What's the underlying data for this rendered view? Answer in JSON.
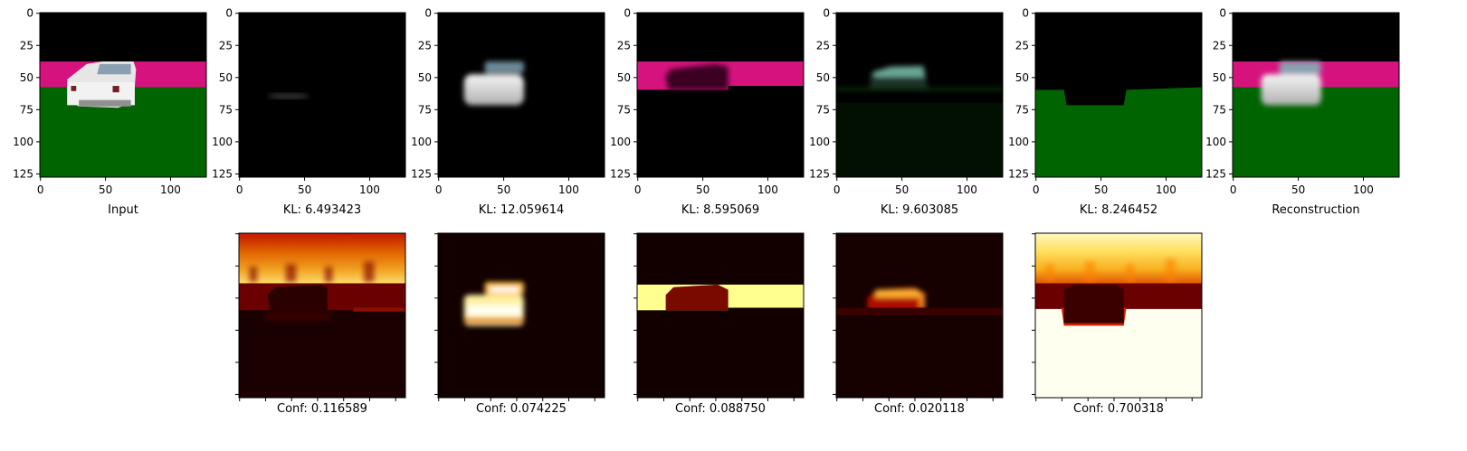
{
  "figure": {
    "top_row": [
      {
        "caption": "Input",
        "kind": "input"
      },
      {
        "caption": "KL: 6.493423",
        "kind": "slot1"
      },
      {
        "caption": "KL: 12.059614",
        "kind": "slot2"
      },
      {
        "caption": "KL: 8.595069",
        "kind": "slot3"
      },
      {
        "caption": "KL: 9.603085",
        "kind": "slot4"
      },
      {
        "caption": "KL: 8.246452",
        "kind": "slot5"
      },
      {
        "caption": "Reconstruction",
        "kind": "recon"
      }
    ],
    "bottom_row": [
      {
        "caption": "Conf: 0.116589",
        "kind": "conf1"
      },
      {
        "caption": "Conf: 0.074225",
        "kind": "conf2"
      },
      {
        "caption": "Conf: 0.088750",
        "kind": "conf3"
      },
      {
        "caption": "Conf: 0.020118",
        "kind": "conf4"
      },
      {
        "caption": "Conf: 0.700318",
        "kind": "conf5"
      }
    ],
    "x_ticks": [
      "0",
      "50",
      "100"
    ],
    "y_ticks": [
      "0",
      "25",
      "50",
      "75",
      "100",
      "125"
    ],
    "colors": {
      "black": "#000000",
      "magenta": "#d6127f",
      "green": "#006400",
      "car_white": "#dcdcdc",
      "hot_dark": "#1a0000",
      "hot_red": "#c01000",
      "hot_yellow": "#ffd040",
      "hot_white": "#fffff0"
    }
  }
}
